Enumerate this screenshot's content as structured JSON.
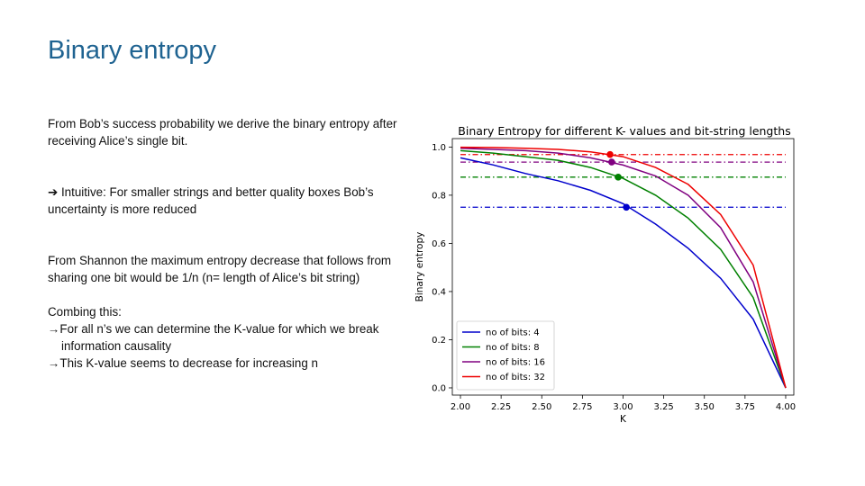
{
  "slide": {
    "title": "Binary entropy",
    "p1": "From  Bob’s success probability we derive the binary entropy after receiving Alice’s single bit.",
    "p2_prefix": "➔ ",
    "p2": "Intuitive: For smaller strings and better quality boxes Bob’s uncertainty is more reduced",
    "p3": "From Shannon the maximum entropy decrease that follows from sharing one bit would be 1/n (n= length of Alice’s bit string)",
    "p4": "Combing this:",
    "bullets": [
      "→For all n’s we can determine  the K-value for which we break information  causality",
      "→This K-value seems to decrease for increasing n"
    ]
  },
  "chart_data": {
    "type": "line",
    "title": "Binary Entropy for different K- values and bit-string lengths",
    "xlabel": "K",
    "ylabel": "Binary entropy",
    "xlim": [
      1.95,
      4.05
    ],
    "ylim": [
      -0.03,
      1.035
    ],
    "xticks": [
      "2.00",
      "2.25",
      "2.50",
      "2.75",
      "3.00",
      "3.25",
      "3.50",
      "3.75",
      "4.00"
    ],
    "yticks": [
      "0.0",
      "0.2",
      "0.4",
      "0.6",
      "0.8",
      "1.0"
    ],
    "legend_position": "lower-left",
    "grid": false,
    "x": [
      2.0,
      2.2,
      2.4,
      2.6,
      2.8,
      3.0,
      3.2,
      3.4,
      3.6,
      3.8,
      4.0
    ],
    "series": [
      {
        "name": "no of bits: 4",
        "color": "#0000cc",
        "values": [
          0.955,
          0.926,
          0.89,
          0.86,
          0.82,
          0.765,
          0.68,
          0.58,
          0.455,
          0.285,
          0.0
        ],
        "threshold": 0.75,
        "marker": [
          3.02,
          0.75
        ]
      },
      {
        "name": "no of bits: 8",
        "color": "#008000",
        "values": [
          0.985,
          0.975,
          0.96,
          0.945,
          0.915,
          0.87,
          0.8,
          0.705,
          0.575,
          0.375,
          0.0
        ],
        "threshold": 0.875,
        "marker": [
          2.97,
          0.875
        ]
      },
      {
        "name": "no of bits: 16",
        "color": "#800080",
        "values": [
          0.995,
          0.99,
          0.985,
          0.975,
          0.955,
          0.925,
          0.88,
          0.8,
          0.665,
          0.44,
          0.0
        ],
        "threshold": 0.9375,
        "marker": [
          2.93,
          0.9375
        ]
      },
      {
        "name": "no of bits: 32",
        "color": "#ee0000",
        "values": [
          0.999,
          0.998,
          0.995,
          0.99,
          0.98,
          0.96,
          0.915,
          0.845,
          0.72,
          0.51,
          0.0
        ],
        "threshold": 0.96875,
        "marker": [
          2.92,
          0.96875
        ]
      }
    ]
  }
}
